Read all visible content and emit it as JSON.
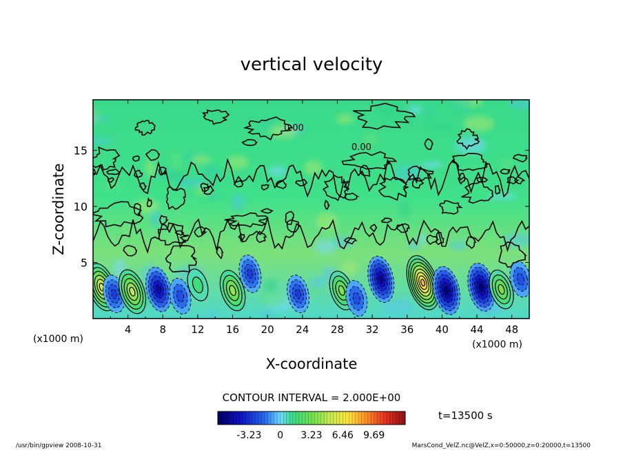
{
  "chart_data": {
    "type": "heatmap",
    "title": "vertical velocity",
    "xlabel": "X-coordinate",
    "ylabel": "Z-coordinate",
    "x_unit_left": "(x1000 m)",
    "x_unit_right": "(x1000 m)",
    "xlim": [
      0,
      50
    ],
    "ylim": [
      0,
      19.5
    ],
    "xticks": [
      "4",
      "8",
      "12",
      "16",
      "20",
      "24",
      "28",
      "32",
      "36",
      "40",
      "44",
      "48"
    ],
    "yticks": [
      "5",
      "10",
      "15"
    ],
    "contour_labels": [
      "0.00",
      "0.00"
    ],
    "contour_interval": "CONTOUR INTERVAL = 2.000E+00",
    "colorbar": {
      "ticks": [
        "-3.23",
        "0",
        "3.23",
        "6.46",
        "9.69"
      ],
      "min": -6.46,
      "max": 12.92
    },
    "time_label": "t=13500 s",
    "footer_left": "/usr/bin/gpview   2008-10-31",
    "footer_right": "MarsCond_VelZ.nc@VelZ,x=0:50000,z=0:20000,t=13500",
    "cells": [
      {
        "x": 1.0,
        "z": 2.8,
        "w": 6.0,
        "sign": "up"
      },
      {
        "x": 2.4,
        "z": 2.2,
        "w": -3.0,
        "sign": "down"
      },
      {
        "x": 4.5,
        "z": 2.4,
        "w": 5.0,
        "sign": "up"
      },
      {
        "x": 7.5,
        "z": 2.6,
        "w": -5.0,
        "sign": "down"
      },
      {
        "x": 10.0,
        "z": 2.0,
        "w": -2.5,
        "sign": "down"
      },
      {
        "x": 12.0,
        "z": 3.0,
        "w": 1.5,
        "sign": "up"
      },
      {
        "x": 16.0,
        "z": 2.5,
        "w": 4.0,
        "sign": "up"
      },
      {
        "x": 18.0,
        "z": 4.0,
        "w": -3.0,
        "sign": "down"
      },
      {
        "x": 23.5,
        "z": 2.2,
        "w": -3.0,
        "sign": "down"
      },
      {
        "x": 28.5,
        "z": 2.5,
        "w": 3.5,
        "sign": "up"
      },
      {
        "x": 30.2,
        "z": 1.8,
        "w": -2.5,
        "sign": "down"
      },
      {
        "x": 33.0,
        "z": 3.5,
        "w": -5.5,
        "sign": "down"
      },
      {
        "x": 37.8,
        "z": 3.2,
        "w": 8.0,
        "sign": "up"
      },
      {
        "x": 40.5,
        "z": 2.5,
        "w": -6.0,
        "sign": "down"
      },
      {
        "x": 44.5,
        "z": 2.8,
        "w": -6.0,
        "sign": "down"
      },
      {
        "x": 46.8,
        "z": 2.6,
        "w": 3.5,
        "sign": "up"
      },
      {
        "x": 49.0,
        "z": 3.5,
        "w": -2.5,
        "sign": "down"
      }
    ]
  }
}
